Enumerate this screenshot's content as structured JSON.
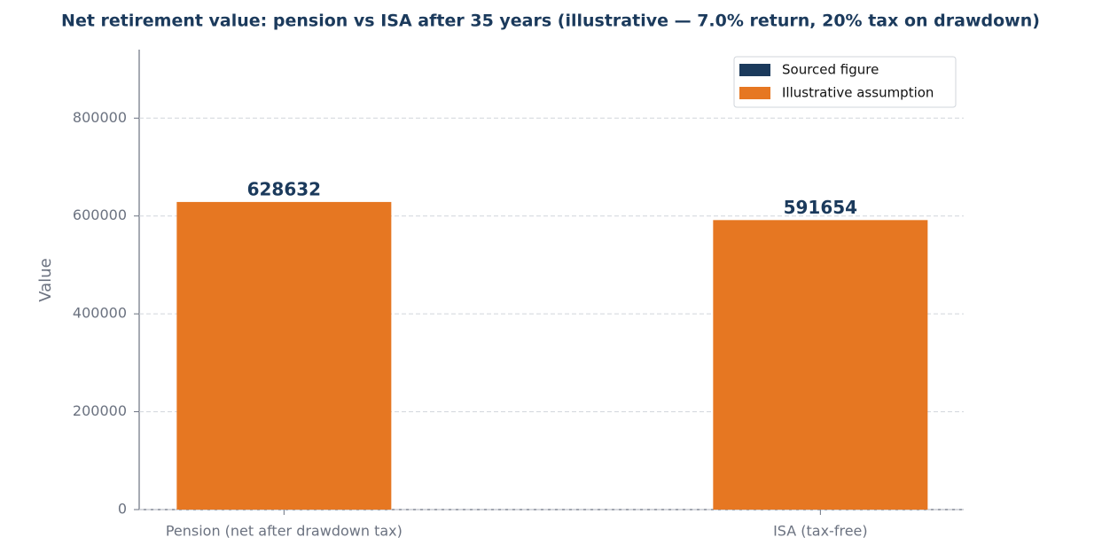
{
  "chart_data": {
    "type": "bar",
    "title": "Net retirement value: pension vs ISA after 35 years (illustrative — 7.0% return, 20% tax on drawdown)",
    "y_label": "Value",
    "categories": [
      "Pension (net after drawdown tax)",
      "ISA (tax-free)"
    ],
    "values": [
      628632,
      591654
    ],
    "color": "#e67722",
    "value_label_color": "#1b3a5c",
    "ylim": [
      0,
      940000
    ],
    "yticks": [
      0,
      200000,
      400000,
      600000,
      800000
    ],
    "grid": true,
    "legend_position": "upper right",
    "legend": [
      {
        "name": "Sourced figure",
        "color": "#1b3a5c"
      },
      {
        "name": "Illustrative assumption",
        "color": "#e67722"
      }
    ]
  }
}
